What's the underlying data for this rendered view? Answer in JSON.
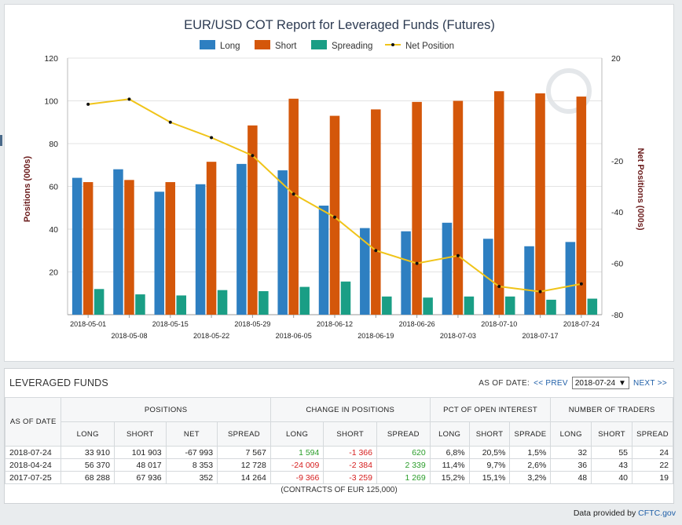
{
  "chart_data": {
    "type": "bar",
    "title": "EUR/USD COT Report for Leveraged Funds (Futures)",
    "ylabel": "Positions (000s)",
    "y2label": "Net Positions (000s)",
    "ylim": [
      0,
      120
    ],
    "y2lim": [
      -80,
      20
    ],
    "yticks": [
      20,
      40,
      60,
      80,
      100,
      120
    ],
    "y2ticks": [
      20,
      -20,
      -40,
      -60,
      -80
    ],
    "legend_position": "top",
    "categories": [
      "2018-05-01",
      "2018-05-08",
      "2018-05-15",
      "2018-05-22",
      "2018-05-29",
      "2018-06-05",
      "2018-06-12",
      "2018-06-19",
      "2018-06-26",
      "2018-07-03",
      "2018-07-10",
      "2018-07-17",
      "2018-07-24"
    ],
    "series": [
      {
        "name": "Long",
        "type": "bar",
        "color": "#2e7fc1",
        "values": [
          64,
          68,
          57.5,
          61,
          70.5,
          67.5,
          51,
          40.5,
          39,
          43,
          35.5,
          32,
          34
        ]
      },
      {
        "name": "Short",
        "type": "bar",
        "color": "#d4570a",
        "values": [
          62,
          63,
          62,
          71.5,
          88.5,
          101,
          93,
          96,
          99.5,
          100,
          104.5,
          103.5,
          102
        ]
      },
      {
        "name": "Spreading",
        "type": "bar",
        "color": "#1a9e85",
        "values": [
          12,
          9.5,
          9,
          11.5,
          11,
          13,
          15.5,
          8.5,
          8,
          8.5,
          8.5,
          7,
          7.5
        ]
      },
      {
        "name": "Net Position",
        "type": "line",
        "axis": "right",
        "color": "#f0c419",
        "values": [
          2,
          4,
          -5,
          -11,
          -18,
          -33,
          -42,
          -55,
          -60,
          -57,
          -69,
          -71,
          -68
        ]
      }
    ]
  },
  "table": {
    "title": "LEVERAGED FUNDS",
    "as_of_label": "AS OF DATE:",
    "prev_label": "<< PREV",
    "next_label": "NEXT >>",
    "selected_date": "2018-07-24",
    "col_as_of": "AS OF DATE",
    "groups": [
      "POSITIONS",
      "CHANGE IN POSITIONS",
      "PCT OF OPEN INTEREST",
      "NUMBER OF TRADERS"
    ],
    "sub_positions": [
      "LONG",
      "SHORT",
      "NET",
      "SPREAD"
    ],
    "sub_change": [
      "LONG",
      "SHORT",
      "SPREAD"
    ],
    "sub_pct": [
      "LONG",
      "SHORT",
      "SPRADE"
    ],
    "sub_traders": [
      "LONG",
      "SHORT",
      "SPREAD"
    ],
    "rows": [
      {
        "date": "2018-07-24",
        "pos": [
          "33 910",
          "101 903",
          "-67 993",
          "7 567"
        ],
        "chg": [
          "1 594",
          "-1 366",
          "620"
        ],
        "pct": [
          "6,8%",
          "20,5%",
          "1,5%"
        ],
        "trd": [
          "32",
          "55",
          "24"
        ]
      },
      {
        "date": "2018-04-24",
        "pos": [
          "56 370",
          "48 017",
          "8 353",
          "12 728"
        ],
        "chg": [
          "-24 009",
          "-2 384",
          "2 339"
        ],
        "pct": [
          "11,4%",
          "9,7%",
          "2,6%"
        ],
        "trd": [
          "36",
          "43",
          "22"
        ]
      },
      {
        "date": "2017-07-25",
        "pos": [
          "68 288",
          "67 936",
          "352",
          "14 264"
        ],
        "chg": [
          "-9 366",
          "-3 259",
          "1 269"
        ],
        "pct": [
          "15,2%",
          "15,1%",
          "3,2%"
        ],
        "trd": [
          "48",
          "40",
          "19"
        ]
      }
    ],
    "footer": "(CONTRACTS OF EUR 125,000)"
  },
  "credit": {
    "prefix": "Data provided by",
    "link": "CFTC.gov"
  }
}
